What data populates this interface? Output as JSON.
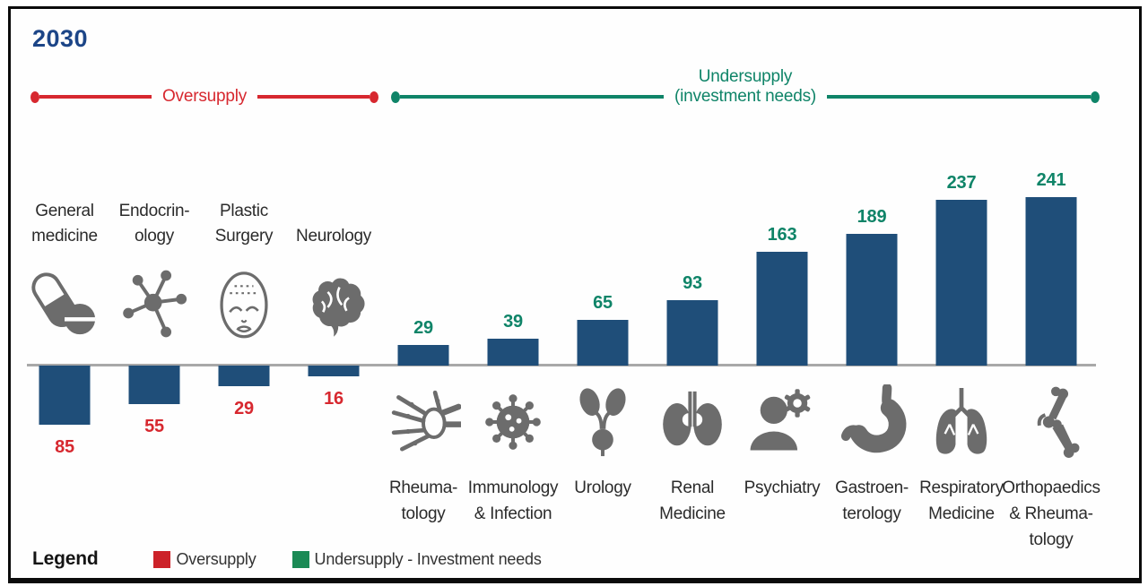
{
  "title": "2030",
  "ranges": {
    "oversupply": {
      "label": "Oversupply"
    },
    "undersupply": {
      "label": "Undersupply\n(investment needs)"
    }
  },
  "colors": {
    "bar_navy": "#1F4E79",
    "oversupply_red": "#D7282F",
    "undersupply_green": "#0F8468",
    "icon_gray": "#6C6C6C",
    "axis_gray": "#A8A8A8",
    "title_blue": "#1C4587"
  },
  "specialties": [
    {
      "label": "General\nmedicine",
      "value": 85,
      "group": "oversupply",
      "icon": "pills-icon"
    },
    {
      "label": "Endocrin-\nology",
      "value": 55,
      "group": "oversupply",
      "icon": "molecule-icon"
    },
    {
      "label": "Plastic\nSurgery",
      "value": 29,
      "group": "oversupply",
      "icon": "face-icon"
    },
    {
      "label": "Neurology",
      "value": 16,
      "group": "oversupply",
      "icon": "brain-icon"
    },
    {
      "label": "Rheuma-\ntology",
      "value": 29,
      "group": "undersupply",
      "icon": "hand-bones-icon"
    },
    {
      "label": "Immunology\n& Infection",
      "value": 39,
      "group": "undersupply",
      "icon": "virus-icon"
    },
    {
      "label": "Urology",
      "value": 65,
      "group": "undersupply",
      "icon": "urinary-tract-icon"
    },
    {
      "label": "Renal\nMedicine",
      "value": 93,
      "group": "undersupply",
      "icon": "kidneys-icon"
    },
    {
      "label": "Psychiatry",
      "value": 163,
      "group": "undersupply",
      "icon": "psychiatry-person-gear-icon"
    },
    {
      "label": "Gastroen-\nterology",
      "value": 189,
      "group": "undersupply",
      "icon": "stomach-icon"
    },
    {
      "label": "Respiratory\nMedicine",
      "value": 237,
      "group": "undersupply",
      "icon": "lungs-icon"
    },
    {
      "label": "Orthopaedics\n& Rheuma-\ntology",
      "value": 241,
      "group": "undersupply",
      "icon": "bone-joint-icon"
    }
  ],
  "legend": {
    "title": "Legend",
    "items": [
      {
        "label": "Oversupply",
        "color": "#CC2229"
      },
      {
        "label": "Undersupply - Investment needs",
        "color": "#1B8A55"
      }
    ]
  },
  "chart_data": {
    "type": "bar",
    "title": "2030",
    "categories": [
      "General medicine",
      "Endocrinology",
      "Plastic Surgery",
      "Neurology",
      "Rheumatology",
      "Immunology & Infection",
      "Urology",
      "Renal Medicine",
      "Psychiatry",
      "Gastroenterology",
      "Respiratory Medicine",
      "Orthopaedics & Rheumatology"
    ],
    "series": [
      {
        "name": "Oversupply",
        "values": [
          85,
          55,
          29,
          16,
          null,
          null,
          null,
          null,
          null,
          null,
          null,
          null
        ]
      },
      {
        "name": "Undersupply - Investment needs",
        "values": [
          null,
          null,
          null,
          null,
          29,
          39,
          65,
          93,
          163,
          189,
          237,
          241
        ]
      }
    ],
    "values_signed": [
      -85,
      -55,
      -29,
      -16,
      29,
      39,
      65,
      93,
      163,
      189,
      237,
      241
    ],
    "orientation": "vertical",
    "baseline": 0,
    "ylim": [
      -100,
      260
    ],
    "grid": false,
    "data_labels": true,
    "legend_position": "bottom",
    "annotations": [
      "Oversupply bracket spans first 4 categories",
      "Undersupply (investment needs) bracket spans last 8 categories"
    ]
  }
}
